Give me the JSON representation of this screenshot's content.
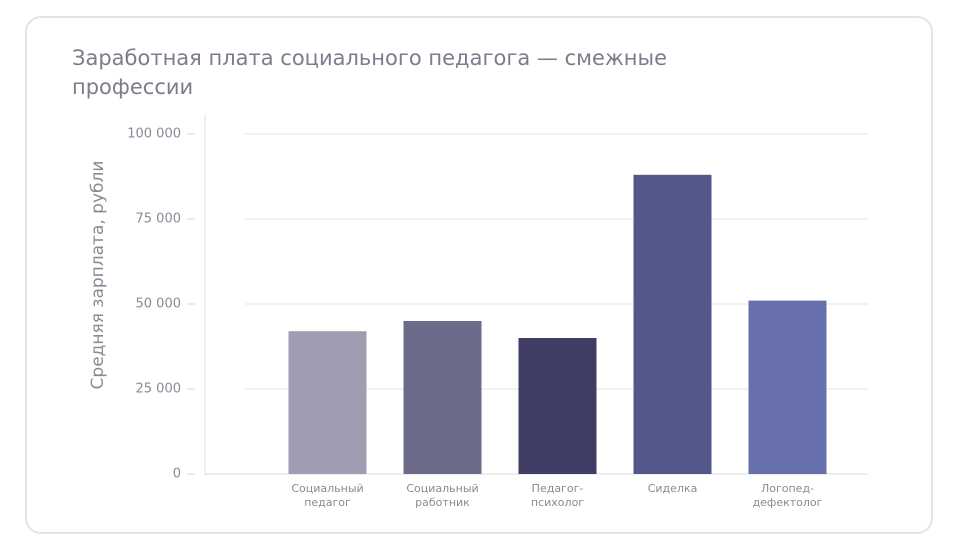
{
  "chart_data": {
    "type": "bar",
    "title": "Заработная плата социального педагога — смежные профессии",
    "y_label": "Средняя зарплата, рубли",
    "categories": [
      "Социальный педагог",
      "Социальный работник",
      "Педагог-психолог",
      "Сиделка",
      "Логопед-дефектолог"
    ],
    "values": [
      42000,
      45000,
      40000,
      88000,
      51000
    ],
    "colors": [
      "#9f9db2",
      "#6c6b8a",
      "#3f3d63",
      "#53578a",
      "#6770ac"
    ],
    "ylim": [
      0,
      100000
    ],
    "yticks": [
      0,
      {
        "value": 25000,
        "label": "25 000"
      },
      {
        "value": 50000,
        "label": "50 000"
      },
      {
        "value": 75000,
        "label": "75 000"
      },
      {
        "value": 100000,
        "label": "100 000"
      }
    ],
    "grid": true
  }
}
